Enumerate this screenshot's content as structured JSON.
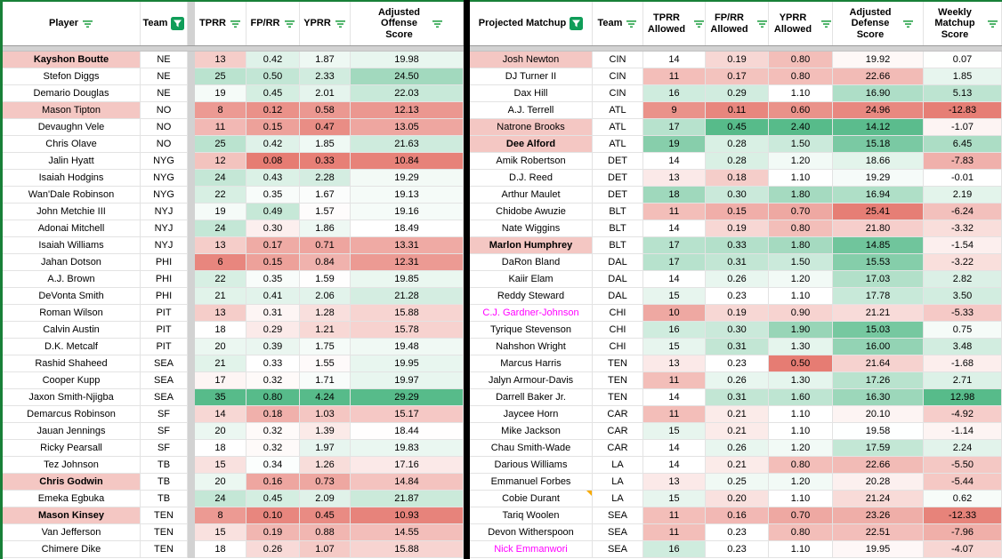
{
  "app": {
    "type": "spreadsheet-matchup-view"
  },
  "colors": {
    "scale_green": "#57bb8a",
    "scale_red": "#e67c73",
    "scale_mid": "#ffffff",
    "flag_pink": "#f4c7c3",
    "magenta_name": "#ff00ff",
    "border_green": "#188038",
    "divider_black": "#000000",
    "hidden_gray": "#d2d2d2",
    "filter_icon_green": "#34a853",
    "active_filter_green": "#0f9d58",
    "note_orange": "#f9ab00"
  },
  "scales": {
    "left_tprr": {
      "min": 5,
      "mid": 18,
      "max": 35,
      "reverse": false
    },
    "left_fprr": {
      "min": 0.08,
      "mid": 0.33,
      "max": 0.8,
      "reverse": false
    },
    "left_yprr": {
      "min": 0.3,
      "mid": 1.6,
      "max": 4.24,
      "reverse": false
    },
    "left_adj": {
      "min": 10.5,
      "mid": 18.5,
      "max": 29.3,
      "reverse": false
    },
    "right_tprr": {
      "min": 8,
      "mid": 14,
      "max": 21,
      "reverse": false
    },
    "right_fprr": {
      "min": 0.1,
      "mid": 0.23,
      "max": 0.45,
      "reverse": false
    },
    "right_yprr": {
      "min": 0.5,
      "mid": 1.1,
      "max": 2.4,
      "reverse": false
    },
    "right_def": {
      "min": 14.0,
      "mid": 19.6,
      "max": 25.5,
      "reverse": true
    },
    "right_weekly": {
      "min": -13,
      "mid": 0,
      "max": 13,
      "reverse": false
    }
  },
  "left_table": {
    "columns": [
      {
        "label": "Player",
        "filter": "lines"
      },
      {
        "label": "Team",
        "filter": "active"
      },
      {
        "label": "",
        "filter": null,
        "gap": true
      },
      {
        "label": "TPRR",
        "filter": "lines",
        "scale": "left_tprr"
      },
      {
        "label": "FP/RR",
        "filter": "lines",
        "scale": "left_fprr"
      },
      {
        "label": "YPRR",
        "filter": "lines",
        "scale": "left_yprr"
      },
      {
        "label": "Adjusted Offense Score",
        "filter": "lines",
        "scale": "left_adj"
      }
    ],
    "rows": [
      {
        "name": "Kayshon Boutte",
        "team": "NE",
        "bold": true,
        "flag": true,
        "values": [
          "13",
          "0.42",
          "1.87",
          "19.98"
        ]
      },
      {
        "name": "Stefon Diggs",
        "team": "NE",
        "values": [
          "25",
          "0.50",
          "2.33",
          "24.50"
        ]
      },
      {
        "name": "Demario Douglas",
        "team": "NE",
        "values": [
          "19",
          "0.45",
          "2.01",
          "22.03"
        ]
      },
      {
        "name": "Mason Tipton",
        "team": "NO",
        "flag": true,
        "values": [
          "8",
          "0.12",
          "0.58",
          "12.13"
        ]
      },
      {
        "name": "Devaughn Vele",
        "team": "NO",
        "values": [
          "11",
          "0.15",
          "0.47",
          "13.05"
        ]
      },
      {
        "name": "Chris Olave",
        "team": "NO",
        "values": [
          "25",
          "0.42",
          "1.85",
          "21.63"
        ]
      },
      {
        "name": "Jalin Hyatt",
        "team": "NYG",
        "values": [
          "12",
          "0.08",
          "0.33",
          "10.84"
        ]
      },
      {
        "name": "Isaiah Hodgins",
        "team": "NYG",
        "values": [
          "24",
          "0.43",
          "2.28",
          "19.29"
        ]
      },
      {
        "name": "Wan'Dale Robinson",
        "team": "NYG",
        "values": [
          "22",
          "0.35",
          "1.67",
          "19.13"
        ]
      },
      {
        "name": "John Metchie III",
        "team": "NYJ",
        "values": [
          "19",
          "0.49",
          "1.57",
          "19.16"
        ]
      },
      {
        "name": "Adonai Mitchell",
        "team": "NYJ",
        "values": [
          "24",
          "0.30",
          "1.86",
          "18.49"
        ]
      },
      {
        "name": "Isaiah Williams",
        "team": "NYJ",
        "values": [
          "13",
          "0.17",
          "0.71",
          "13.31"
        ]
      },
      {
        "name": "Jahan Dotson",
        "team": "PHI",
        "values": [
          "6",
          "0.15",
          "0.84",
          "12.31"
        ]
      },
      {
        "name": "A.J. Brown",
        "team": "PHI",
        "values": [
          "22",
          "0.35",
          "1.59",
          "19.85"
        ]
      },
      {
        "name": "DeVonta Smith",
        "team": "PHI",
        "values": [
          "21",
          "0.41",
          "2.06",
          "21.28"
        ]
      },
      {
        "name": "Roman Wilson",
        "team": "PIT",
        "values": [
          "13",
          "0.31",
          "1.28",
          "15.88"
        ]
      },
      {
        "name": "Calvin Austin",
        "team": "PIT",
        "values": [
          "18",
          "0.29",
          "1.21",
          "15.78"
        ]
      },
      {
        "name": "D.K. Metcalf",
        "team": "PIT",
        "values": [
          "20",
          "0.39",
          "1.75",
          "19.48"
        ]
      },
      {
        "name": "Rashid Shaheed",
        "team": "SEA",
        "values": [
          "21",
          "0.33",
          "1.55",
          "19.95"
        ]
      },
      {
        "name": "Cooper Kupp",
        "team": "SEA",
        "values": [
          "17",
          "0.32",
          "1.71",
          "19.97"
        ]
      },
      {
        "name": "Jaxon Smith-Njigba",
        "team": "SEA",
        "values": [
          "35",
          "0.80",
          "4.24",
          "29.29"
        ]
      },
      {
        "name": "Demarcus Robinson",
        "team": "SF",
        "values": [
          "14",
          "0.18",
          "1.03",
          "15.17"
        ]
      },
      {
        "name": "Jauan Jennings",
        "team": "SF",
        "values": [
          "20",
          "0.32",
          "1.39",
          "18.44"
        ]
      },
      {
        "name": "Ricky Pearsall",
        "team": "SF",
        "values": [
          "18",
          "0.32",
          "1.97",
          "19.83"
        ]
      },
      {
        "name": "Tez Johnson",
        "team": "TB",
        "values": [
          "15",
          "0.34",
          "1.26",
          "17.16"
        ]
      },
      {
        "name": "Chris Godwin",
        "team": "TB",
        "bold": true,
        "flag": true,
        "values": [
          "20",
          "0.16",
          "0.73",
          "14.84"
        ]
      },
      {
        "name": "Emeka Egbuka",
        "team": "TB",
        "values": [
          "24",
          "0.45",
          "2.09",
          "21.87"
        ]
      },
      {
        "name": "Mason Kinsey",
        "team": "TEN",
        "bold": true,
        "flag": true,
        "values": [
          "8",
          "0.10",
          "0.45",
          "10.93"
        ]
      },
      {
        "name": "Van Jefferson",
        "team": "TEN",
        "values": [
          "15",
          "0.19",
          "0.88",
          "14.55"
        ]
      },
      {
        "name": "Chimere Dike",
        "team": "TEN",
        "values": [
          "18",
          "0.26",
          "1.07",
          "15.88"
        ]
      }
    ]
  },
  "right_table": {
    "columns": [
      {
        "label": "Projected Matchup",
        "filter": "active"
      },
      {
        "label": "Team",
        "filter": "lines"
      },
      {
        "label": "TPRR Allowed",
        "filter": "lines",
        "scale": "right_tprr"
      },
      {
        "label": "FP/RR Allowed",
        "filter": "lines",
        "scale": "right_fprr"
      },
      {
        "label": "YPRR Allowed",
        "filter": "lines",
        "scale": "right_yprr"
      },
      {
        "label": "Adjusted Defense Score",
        "filter": "lines",
        "scale": "right_def"
      },
      {
        "label": "Weekly Matchup Score",
        "filter": "lines",
        "scale": "right_weekly"
      }
    ],
    "rows": [
      {
        "name": "Josh Newton",
        "team": "CIN",
        "flag": true,
        "values": [
          "14",
          "0.19",
          "0.80",
          "19.92",
          "0.07"
        ]
      },
      {
        "name": "DJ Turner II",
        "team": "CIN",
        "values": [
          "11",
          "0.17",
          "0.80",
          "22.66",
          "1.85"
        ]
      },
      {
        "name": "Dax Hill",
        "team": "CIN",
        "values": [
          "16",
          "0.29",
          "1.10",
          "16.90",
          "5.13"
        ]
      },
      {
        "name": "A.J. Terrell",
        "team": "ATL",
        "values": [
          "9",
          "0.11",
          "0.60",
          "24.96",
          "-12.83"
        ]
      },
      {
        "name": "Natrone Brooks",
        "team": "ATL",
        "flag": true,
        "values": [
          "17",
          "0.45",
          "2.40",
          "14.12",
          "-1.07"
        ]
      },
      {
        "name": "Dee Alford",
        "team": "ATL",
        "bold": true,
        "flag": true,
        "values": [
          "19",
          "0.28",
          "1.50",
          "15.18",
          "6.45"
        ]
      },
      {
        "name": "Amik Robertson",
        "team": "DET",
        "values": [
          "14",
          "0.28",
          "1.20",
          "18.66",
          "-7.83"
        ]
      },
      {
        "name": "D.J. Reed",
        "team": "DET",
        "values": [
          "13",
          "0.18",
          "1.10",
          "19.29",
          "-0.01"
        ]
      },
      {
        "name": "Arthur Maulet",
        "team": "DET",
        "values": [
          "18",
          "0.30",
          "1.80",
          "16.94",
          "2.19"
        ]
      },
      {
        "name": "Chidobe Awuzie",
        "team": "BLT",
        "values": [
          "11",
          "0.15",
          "0.70",
          "25.41",
          "-6.24"
        ]
      },
      {
        "name": "Nate Wiggins",
        "team": "BLT",
        "values": [
          "14",
          "0.19",
          "0.80",
          "21.80",
          "-3.32"
        ]
      },
      {
        "name": "Marlon Humphrey",
        "team": "BLT",
        "bold": true,
        "flag": true,
        "values": [
          "17",
          "0.33",
          "1.80",
          "14.85",
          "-1.54"
        ]
      },
      {
        "name": "DaRon Bland",
        "team": "DAL",
        "values": [
          "17",
          "0.31",
          "1.50",
          "15.53",
          "-3.22"
        ]
      },
      {
        "name": "Kaiir Elam",
        "team": "DAL",
        "values": [
          "14",
          "0.26",
          "1.20",
          "17.03",
          "2.82"
        ]
      },
      {
        "name": "Reddy Steward",
        "team": "DAL",
        "values": [
          "15",
          "0.23",
          "1.10",
          "17.78",
          "3.50"
        ]
      },
      {
        "name": "C.J. Gardner-Johnson",
        "team": "CHI",
        "name_color": "magenta",
        "values": [
          "10",
          "0.19",
          "0.90",
          "21.21",
          "-5.33"
        ]
      },
      {
        "name": "Tyrique Stevenson",
        "team": "CHI",
        "values": [
          "16",
          "0.30",
          "1.90",
          "15.03",
          "0.75"
        ]
      },
      {
        "name": "Nahshon Wright",
        "team": "CHI",
        "values": [
          "15",
          "0.31",
          "1.30",
          "16.00",
          "3.48"
        ]
      },
      {
        "name": "Marcus Harris",
        "team": "TEN",
        "values": [
          "13",
          "0.23",
          "0.50",
          "21.64",
          "-1.68"
        ]
      },
      {
        "name": "Jalyn Armour-Davis",
        "team": "TEN",
        "values": [
          "11",
          "0.26",
          "1.30",
          "17.26",
          "2.71"
        ]
      },
      {
        "name": "Darrell Baker Jr.",
        "team": "TEN",
        "values": [
          "14",
          "0.31",
          "1.60",
          "16.30",
          "12.98"
        ]
      },
      {
        "name": "Jaycee Horn",
        "team": "CAR",
        "values": [
          "11",
          "0.21",
          "1.10",
          "20.10",
          "-4.92"
        ]
      },
      {
        "name": "Mike Jackson",
        "team": "CAR",
        "values": [
          "15",
          "0.21",
          "1.10",
          "19.58",
          "-1.14"
        ]
      },
      {
        "name": "Chau Smith-Wade",
        "team": "CAR",
        "values": [
          "14",
          "0.26",
          "1.20",
          "17.59",
          "2.24"
        ]
      },
      {
        "name": "Darious Williams",
        "team": "LA",
        "values": [
          "14",
          "0.21",
          "0.80",
          "22.66",
          "-5.50"
        ]
      },
      {
        "name": "Emmanuel Forbes",
        "team": "LA",
        "values": [
          "13",
          "0.25",
          "1.20",
          "20.28",
          "-5.44"
        ]
      },
      {
        "name": "Cobie Durant",
        "team": "LA",
        "note": true,
        "values": [
          "15",
          "0.20",
          "1.10",
          "21.24",
          "0.62"
        ]
      },
      {
        "name": "Tariq Woolen",
        "team": "SEA",
        "values": [
          "11",
          "0.16",
          "0.70",
          "23.26",
          "-12.33"
        ]
      },
      {
        "name": "Devon Witherspoon",
        "team": "SEA",
        "values": [
          "11",
          "0.23",
          "0.80",
          "22.51",
          "-7.96"
        ]
      },
      {
        "name": "Nick Emmanwori",
        "team": "SEA",
        "name_color": "magenta",
        "values": [
          "16",
          "0.23",
          "1.10",
          "19.95",
          "-4.07"
        ]
      }
    ]
  }
}
